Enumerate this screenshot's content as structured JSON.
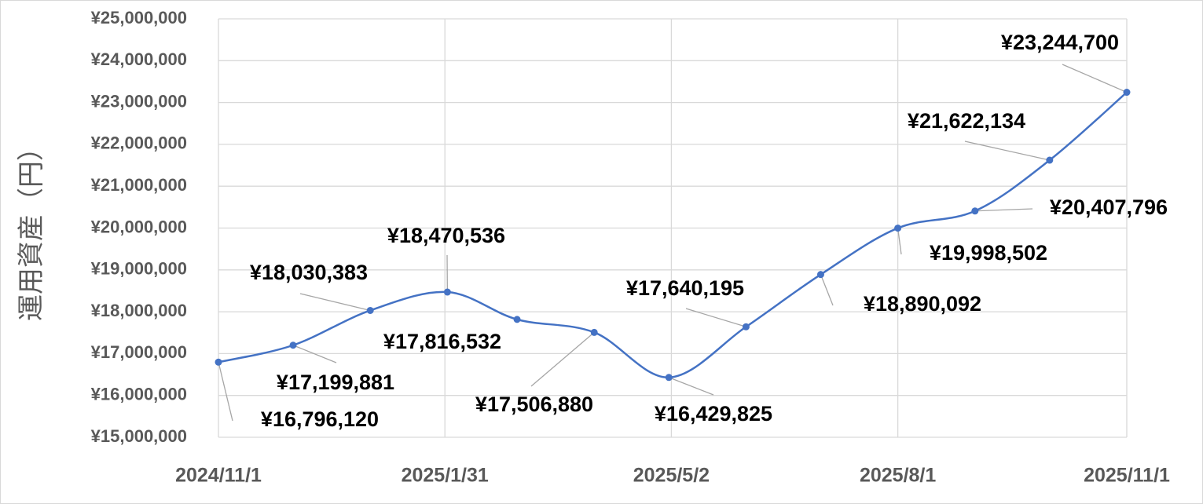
{
  "chart_data": {
    "type": "line",
    "y_label": "運用資産（円）",
    "x": [
      "2024/11/1",
      "2024/12/1",
      "2025/1/1",
      "2025/2/1",
      "2025/3/1",
      "2025/4/1",
      "2025/5/1",
      "2025/6/1",
      "2025/7/1",
      "2025/8/1",
      "2025/9/1",
      "2025/10/1",
      "2025/11/1"
    ],
    "series": [
      {
        "color": "#4472c4",
        "values": [
          16796120,
          17199881,
          18030383,
          18470536,
          17816532,
          17506880,
          16429825,
          17640195,
          18890092,
          19998502,
          20407796,
          21622134,
          23244700
        ],
        "value_labels": [
          "¥16,796,120",
          "¥17,199,881",
          "¥18,030,383",
          "¥18,470,536",
          "¥17,816,532",
          "¥17,506,880",
          "¥16,429,825",
          "¥17,640,195",
          "¥18,890,092",
          "¥19,998,502",
          "¥20,407,796",
          "¥21,622,134",
          "¥23,244,700"
        ],
        "highlight_color": "#ff0000",
        "highlight": [
          0,
          12
        ]
      }
    ],
    "xlim": [
      "2024/11/1",
      "2025/11/1"
    ],
    "xticks": [
      "2024/11/1",
      "2025/1/31",
      "2025/5/2",
      "2025/8/1",
      "2025/11/1"
    ],
    "ylim": [
      15000000,
      25000000
    ],
    "yticks": [
      {
        "value": 15000000,
        "label": "¥15,000,000"
      },
      {
        "value": 16000000,
        "label": "¥16,000,000"
      },
      {
        "value": 17000000,
        "label": "¥17,000,000"
      },
      {
        "value": 18000000,
        "label": "¥18,000,000"
      },
      {
        "value": 19000000,
        "label": "¥19,000,000"
      },
      {
        "value": 20000000,
        "label": "¥20,000,000"
      },
      {
        "value": 21000000,
        "label": "¥21,000,000"
      },
      {
        "value": 22000000,
        "label": "¥22,000,000"
      },
      {
        "value": 23000000,
        "label": "¥23,000,000"
      },
      {
        "value": 24000000,
        "label": "¥24,000,000"
      },
      {
        "value": 25000000,
        "label": "¥25,000,000"
      }
    ],
    "grid": true
  }
}
